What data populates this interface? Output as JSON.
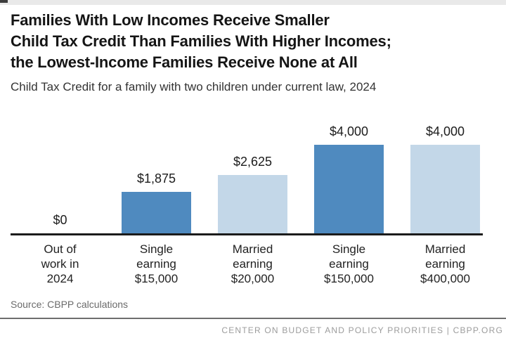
{
  "header": {
    "title_lines": [
      "Families With Low Incomes Receive Smaller",
      "Child Tax Credit Than Families With Higher Incomes;",
      "the Lowest-Income Families Receive None at All"
    ],
    "subtitle": "Child Tax Credit for a family with two children under current law, 2024"
  },
  "chart_data": {
    "type": "bar",
    "title": "Families With Low Incomes Receive Smaller Child Tax Credit Than Families With Higher Incomes; the Lowest-Income Families Receive None at All",
    "subtitle": "Child Tax Credit for a family with two children under current law, 2024",
    "categories": [
      [
        "Out of",
        "work in",
        "2024"
      ],
      [
        "Single",
        "earning",
        "$15,000"
      ],
      [
        "Married",
        "earning",
        "$20,000"
      ],
      [
        "Single",
        "earning",
        "$150,000"
      ],
      [
        "Married",
        "earning",
        "$400,000"
      ]
    ],
    "values": [
      0,
      1875,
      2625,
      4000,
      4000
    ],
    "value_labels": [
      "$0",
      "$1,875",
      "$2,625",
      "$4,000",
      "$4,000"
    ],
    "bar_colors": [
      "#4f8abf",
      "#4f8abf",
      "#c3d7e8",
      "#4f8abf",
      "#c3d7e8"
    ],
    "ylim": [
      0,
      4000
    ],
    "xlabel": "",
    "ylabel": "",
    "grid": false,
    "legend": false,
    "colors": {
      "bar_dark_blue": "#4f8abf",
      "bar_light_blue": "#c3d7e8",
      "axis": "#1b1b1b"
    }
  },
  "footer": {
    "source": "Source: CBPP calculations",
    "org_line": "CENTER ON BUDGET AND POLICY PRIORITIES | CBPP.ORG"
  }
}
